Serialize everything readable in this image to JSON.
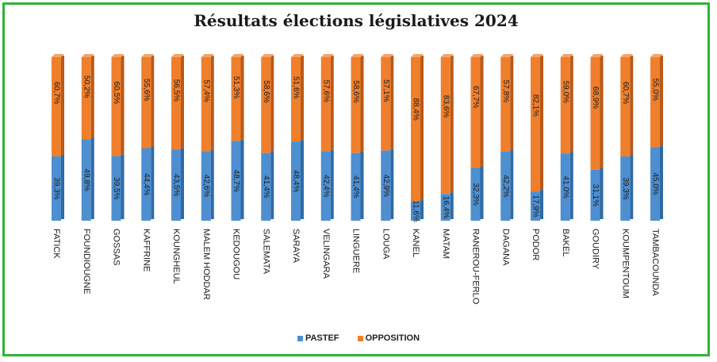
{
  "chart_data": {
    "type": "bar",
    "stacked": true,
    "percent": true,
    "title": "Résultats élections législatives 2024",
    "categories": [
      "FATICK",
      "FOUNDIOUGNE",
      "GOSSAS",
      "KAFFRINE",
      "KOUNGHEUL",
      "MALEM HODDAR",
      "KEDOUGOU",
      "SALEMATA",
      "SARAYA",
      "VELINGARA",
      "LINGUERE",
      "LOUGA",
      "KANEL",
      "MATAM",
      "RANEROU-FERLO",
      "DAGANA",
      "PODOR",
      "BAKEL",
      "GOUDIRY",
      "KOUMPENTOUM",
      "TAMBACOUNDA"
    ],
    "series": [
      {
        "name": "PASTEF",
        "color": "#4d8fd1",
        "values": [
          39.3,
          49.8,
          39.5,
          44.4,
          43.5,
          42.6,
          48.7,
          41.4,
          48.4,
          42.4,
          41.4,
          42.9,
          11.6,
          16.4,
          32.3,
          42.2,
          17.9,
          41.0,
          31.1,
          39.3,
          45.0
        ],
        "labels": [
          "39,3%",
          "49,8%",
          "39,5%",
          "44,4%",
          "43,5%",
          "42,6%",
          "48,7%",
          "41,4%",
          "48,4%",
          "42,4%",
          "41,4%",
          "42,9%",
          "11,6%",
          "16,4%",
          "32,3%",
          "42,2%",
          "17,9%",
          "41,0%",
          "31,1%",
          "39,3%",
          "45,0%"
        ]
      },
      {
        "name": "OPPOSITION",
        "color": "#f07f2c",
        "values": [
          60.7,
          50.2,
          60.5,
          55.6,
          56.5,
          57.4,
          51.3,
          58.6,
          51.6,
          57.6,
          58.6,
          57.1,
          88.4,
          83.6,
          67.7,
          57.8,
          82.1,
          59.0,
          68.9,
          60.7,
          55.0
        ],
        "labels": [
          "60,7%",
          "50,2%",
          "60,5%",
          "55,6%",
          "56,5%",
          "57,4%",
          "51,3%",
          "58,6%",
          "51,6%",
          "57,6%",
          "58,6%",
          "57,1%",
          "88,4%",
          "83,6%",
          "67,7%",
          "57,8%",
          "82,1%",
          "59,0%",
          "68,9%",
          "60,7%",
          "55,0%"
        ]
      }
    ],
    "ylim": [
      0,
      100
    ],
    "grid": false,
    "legend_position": "bottom"
  }
}
